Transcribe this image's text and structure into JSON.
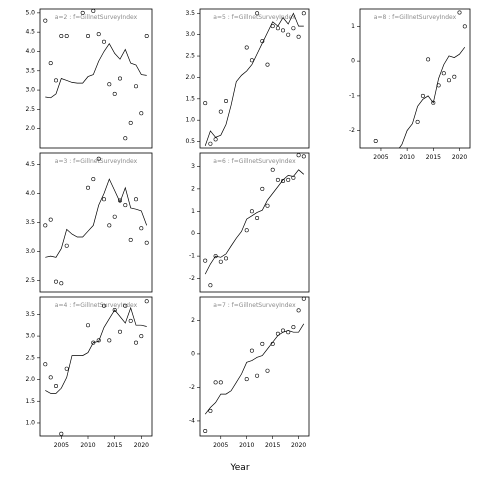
{
  "figure": {
    "xlabel": "Year"
  },
  "chart_data": [
    {
      "type": "scatter",
      "title": "a=2 : f=GillnetSurveyIndex",
      "xlim": [
        2001,
        2022
      ],
      "ylim": [
        1.5,
        5.1
      ],
      "xticks": [],
      "yticks": [
        2.0,
        2.5,
        3.0,
        3.5,
        4.0,
        4.5,
        5.0
      ],
      "ytick_labels": [
        "2.0",
        "2.5",
        "3.0",
        "3.5",
        "4.0",
        "4.5",
        "5.0"
      ],
      "line": {
        "x": [
          2002,
          2003,
          2004,
          2005,
          2006,
          2007,
          2008,
          2009,
          2010,
          2011,
          2012,
          2013,
          2014,
          2015,
          2016,
          2017,
          2018,
          2019,
          2020,
          2021
        ],
        "y": [
          2.82,
          2.8,
          2.9,
          3.3,
          3.25,
          3.2,
          3.18,
          3.18,
          3.35,
          3.4,
          3.75,
          4.0,
          4.2,
          3.95,
          3.8,
          4.05,
          3.7,
          3.65,
          3.4,
          3.38
        ]
      },
      "points": {
        "x": [
          2002,
          2003,
          2004,
          2005,
          2006,
          2009,
          2010,
          2011,
          2012,
          2013,
          2014,
          2015,
          2016,
          2017,
          2018,
          2019,
          2020,
          2021
        ],
        "y": [
          4.8,
          3.7,
          3.25,
          4.4,
          4.4,
          5.0,
          4.4,
          5.05,
          4.45,
          4.25,
          3.15,
          2.9,
          3.3,
          1.75,
          2.15,
          3.1,
          2.4,
          4.4
        ]
      }
    },
    {
      "type": "scatter",
      "title": "a=3 : f=GillnetSurveyIndex",
      "xlim": [
        2001,
        2022
      ],
      "ylim": [
        2.3,
        4.7
      ],
      "xticks": [],
      "yticks": [
        2.5,
        3.0,
        3.5,
        4.0,
        4.5
      ],
      "ytick_labels": [
        "2.5",
        "3.0",
        "3.5",
        "4.0",
        "4.5"
      ],
      "line": {
        "x": [
          2002,
          2003,
          2004,
          2005,
          2006,
          2007,
          2008,
          2009,
          2010,
          2011,
          2012,
          2013,
          2014,
          2015,
          2016,
          2017,
          2018,
          2019,
          2020,
          2021
        ],
        "y": [
          2.9,
          2.92,
          2.9,
          3.05,
          3.38,
          3.3,
          3.25,
          3.25,
          3.35,
          3.45,
          3.8,
          4.0,
          4.25,
          4.05,
          3.85,
          4.1,
          3.75,
          3.73,
          3.7,
          3.45
        ]
      },
      "points": {
        "x": [
          2002,
          2003,
          2004,
          2005,
          2006,
          2010,
          2011,
          2012,
          2013,
          2014,
          2015,
          2016,
          2017,
          2018,
          2019,
          2020,
          2021
        ],
        "y": [
          3.45,
          3.55,
          2.48,
          2.45,
          3.1,
          4.1,
          4.25,
          4.6,
          3.9,
          3.45,
          3.6,
          3.88,
          3.8,
          3.2,
          3.9,
          3.4,
          3.15
        ]
      }
    },
    {
      "type": "scatter",
      "title": "a=4 : f=GillnetSurveyIndex",
      "xlim": [
        2001,
        2022
      ],
      "ylim": [
        0.7,
        3.9
      ],
      "xticks": [
        2005,
        2010,
        2015,
        2020
      ],
      "xtick_labels": [
        "2005",
        "2010",
        "2015",
        "2020"
      ],
      "yticks": [
        1.0,
        1.5,
        2.0,
        2.5,
        3.0,
        3.5
      ],
      "ytick_labels": [
        "1.0",
        "1.5",
        "2.0",
        "2.5",
        "3.0",
        "3.5"
      ],
      "line": {
        "x": [
          2002,
          2003,
          2004,
          2005,
          2006,
          2007,
          2008,
          2009,
          2010,
          2011,
          2012,
          2013,
          2014,
          2015,
          2016,
          2017,
          2018,
          2019,
          2020,
          2021
        ],
        "y": [
          1.75,
          1.68,
          1.68,
          1.8,
          2.05,
          2.55,
          2.55,
          2.55,
          2.62,
          2.85,
          2.88,
          3.2,
          3.4,
          3.6,
          3.45,
          3.3,
          3.65,
          3.25,
          3.25,
          3.22
        ]
      },
      "points": {
        "x": [
          2002,
          2003,
          2004,
          2005,
          2006,
          2010,
          2011,
          2012,
          2013,
          2014,
          2015,
          2016,
          2017,
          2018,
          2019,
          2020,
          2021
        ],
        "y": [
          2.35,
          2.05,
          1.85,
          0.75,
          2.25,
          3.25,
          2.85,
          2.9,
          3.7,
          2.9,
          3.6,
          3.1,
          3.7,
          3.35,
          2.85,
          3.0,
          3.8
        ]
      }
    },
    {
      "type": "scatter",
      "title": "a=5 : f=GillnetSurveyIndex",
      "xlim": [
        2001,
        2022
      ],
      "ylim": [
        0.35,
        3.6
      ],
      "xticks": [],
      "yticks": [
        0.5,
        1.0,
        1.5,
        2.0,
        2.5,
        3.0,
        3.5
      ],
      "ytick_labels": [
        "0.5",
        "1.0",
        "1.5",
        "2.0",
        "2.5",
        "3.0",
        "3.5"
      ],
      "line": {
        "x": [
          2002,
          2003,
          2004,
          2005,
          2006,
          2007,
          2008,
          2009,
          2010,
          2011,
          2012,
          2013,
          2014,
          2015,
          2016,
          2017,
          2018,
          2019,
          2020,
          2021
        ],
        "y": [
          0.4,
          0.75,
          0.6,
          0.65,
          0.9,
          1.35,
          1.9,
          2.05,
          2.15,
          2.3,
          2.55,
          2.8,
          3.05,
          3.3,
          3.2,
          3.4,
          3.25,
          3.5,
          3.2,
          3.2
        ]
      },
      "points": {
        "x": [
          2002,
          2003,
          2004,
          2005,
          2006,
          2010,
          2011,
          2012,
          2013,
          2014,
          2015,
          2016,
          2017,
          2018,
          2019,
          2020,
          2021
        ],
        "y": [
          1.4,
          0.45,
          0.55,
          1.2,
          1.45,
          2.7,
          2.4,
          3.5,
          2.85,
          2.3,
          3.2,
          3.15,
          3.1,
          3.0,
          3.15,
          2.95,
          3.5
        ]
      }
    },
    {
      "type": "scatter",
      "title": "a=6 : f=GillnetSurveyIndex",
      "xlim": [
        2001,
        2022
      ],
      "ylim": [
        -2.6,
        3.6
      ],
      "xticks": [],
      "yticks": [
        -2,
        -1,
        0,
        1,
        2,
        3
      ],
      "ytick_labels": [
        "-2",
        "-1",
        "0",
        "1",
        "2",
        "3"
      ],
      "line": {
        "x": [
          2002,
          2003,
          2004,
          2005,
          2006,
          2007,
          2008,
          2009,
          2010,
          2011,
          2012,
          2013,
          2014,
          2015,
          2016,
          2017,
          2018,
          2019,
          2020,
          2021
        ],
        "y": [
          -1.8,
          -1.35,
          -1.0,
          -1.05,
          -0.9,
          -0.55,
          -0.2,
          0.1,
          0.65,
          0.8,
          0.95,
          1.05,
          1.5,
          1.8,
          2.1,
          2.4,
          2.6,
          2.55,
          2.85,
          2.65
        ]
      },
      "points": {
        "x": [
          2002,
          2003,
          2004,
          2005,
          2006,
          2010,
          2011,
          2012,
          2013,
          2014,
          2015,
          2016,
          2017,
          2018,
          2019,
          2020,
          2021
        ],
        "y": [
          -1.2,
          -2.3,
          -1.0,
          -1.25,
          -1.1,
          0.15,
          1.0,
          0.7,
          2.0,
          1.25,
          2.85,
          2.4,
          2.35,
          2.4,
          2.5,
          3.5,
          3.45
        ]
      }
    },
    {
      "type": "scatter",
      "title": "a=7 : f=GillnetSurveyIndex",
      "xlim": [
        2001,
        2022
      ],
      "ylim": [
        -4.9,
        3.4
      ],
      "xticks": [
        2005,
        2010,
        2015,
        2020
      ],
      "xtick_labels": [
        "2005",
        "2010",
        "2015",
        "2020"
      ],
      "yticks": [
        -4,
        -2,
        0,
        2
      ],
      "ytick_labels": [
        "-4",
        "-2",
        "0",
        "2"
      ],
      "line": {
        "x": [
          2002,
          2003,
          2004,
          2005,
          2006,
          2007,
          2008,
          2009,
          2010,
          2011,
          2012,
          2013,
          2014,
          2015,
          2016,
          2017,
          2018,
          2019,
          2020,
          2021
        ],
        "y": [
          -3.6,
          -3.2,
          -2.9,
          -2.4,
          -2.4,
          -2.2,
          -1.7,
          -1.2,
          -0.5,
          -0.4,
          -0.2,
          -0.1,
          0.3,
          0.7,
          1.1,
          1.3,
          1.4,
          1.3,
          1.3,
          1.8
        ]
      },
      "points": {
        "x": [
          2002,
          2003,
          2004,
          2005,
          2010,
          2011,
          2012,
          2013,
          2014,
          2015,
          2016,
          2017,
          2018,
          2019,
          2020,
          2021
        ],
        "y": [
          -4.6,
          -3.4,
          -1.7,
          -1.7,
          -1.5,
          0.2,
          -1.3,
          0.6,
          -1.0,
          0.6,
          1.2,
          1.4,
          1.3,
          1.6,
          2.6,
          3.3
        ]
      }
    },
    {
      "type": "scatter",
      "title": "a=8 : f=GillnetSurveyIndex",
      "xlim": [
        2001,
        2022
      ],
      "ylim": [
        -2.5,
        1.5
      ],
      "xticks": [
        2005,
        2010,
        2015,
        2020
      ],
      "xtick_labels": [
        "2005",
        "2010",
        "2015",
        "2020"
      ],
      "yticks": [
        -2,
        -1,
        0,
        1
      ],
      "ytick_labels": [
        "-2",
        "-1",
        "0",
        "1"
      ],
      "line": {
        "x": [
          2008,
          2009,
          2010,
          2011,
          2012,
          2013,
          2014,
          2015,
          2016,
          2017,
          2018,
          2019,
          2020,
          2021
        ],
        "y": [
          -2.6,
          -2.4,
          -2.0,
          -1.8,
          -1.3,
          -1.1,
          -1.0,
          -1.2,
          -0.5,
          -0.1,
          0.15,
          0.1,
          0.2,
          0.4
        ]
      },
      "points": {
        "x": [
          2004,
          2012,
          2013,
          2014,
          2015,
          2016,
          2017,
          2018,
          2019,
          2020,
          2021
        ],
        "y": [
          -2.3,
          -1.75,
          -1.0,
          0.05,
          -1.2,
          -0.7,
          -0.35,
          -0.55,
          -0.45,
          1.4,
          1.0
        ]
      }
    }
  ]
}
